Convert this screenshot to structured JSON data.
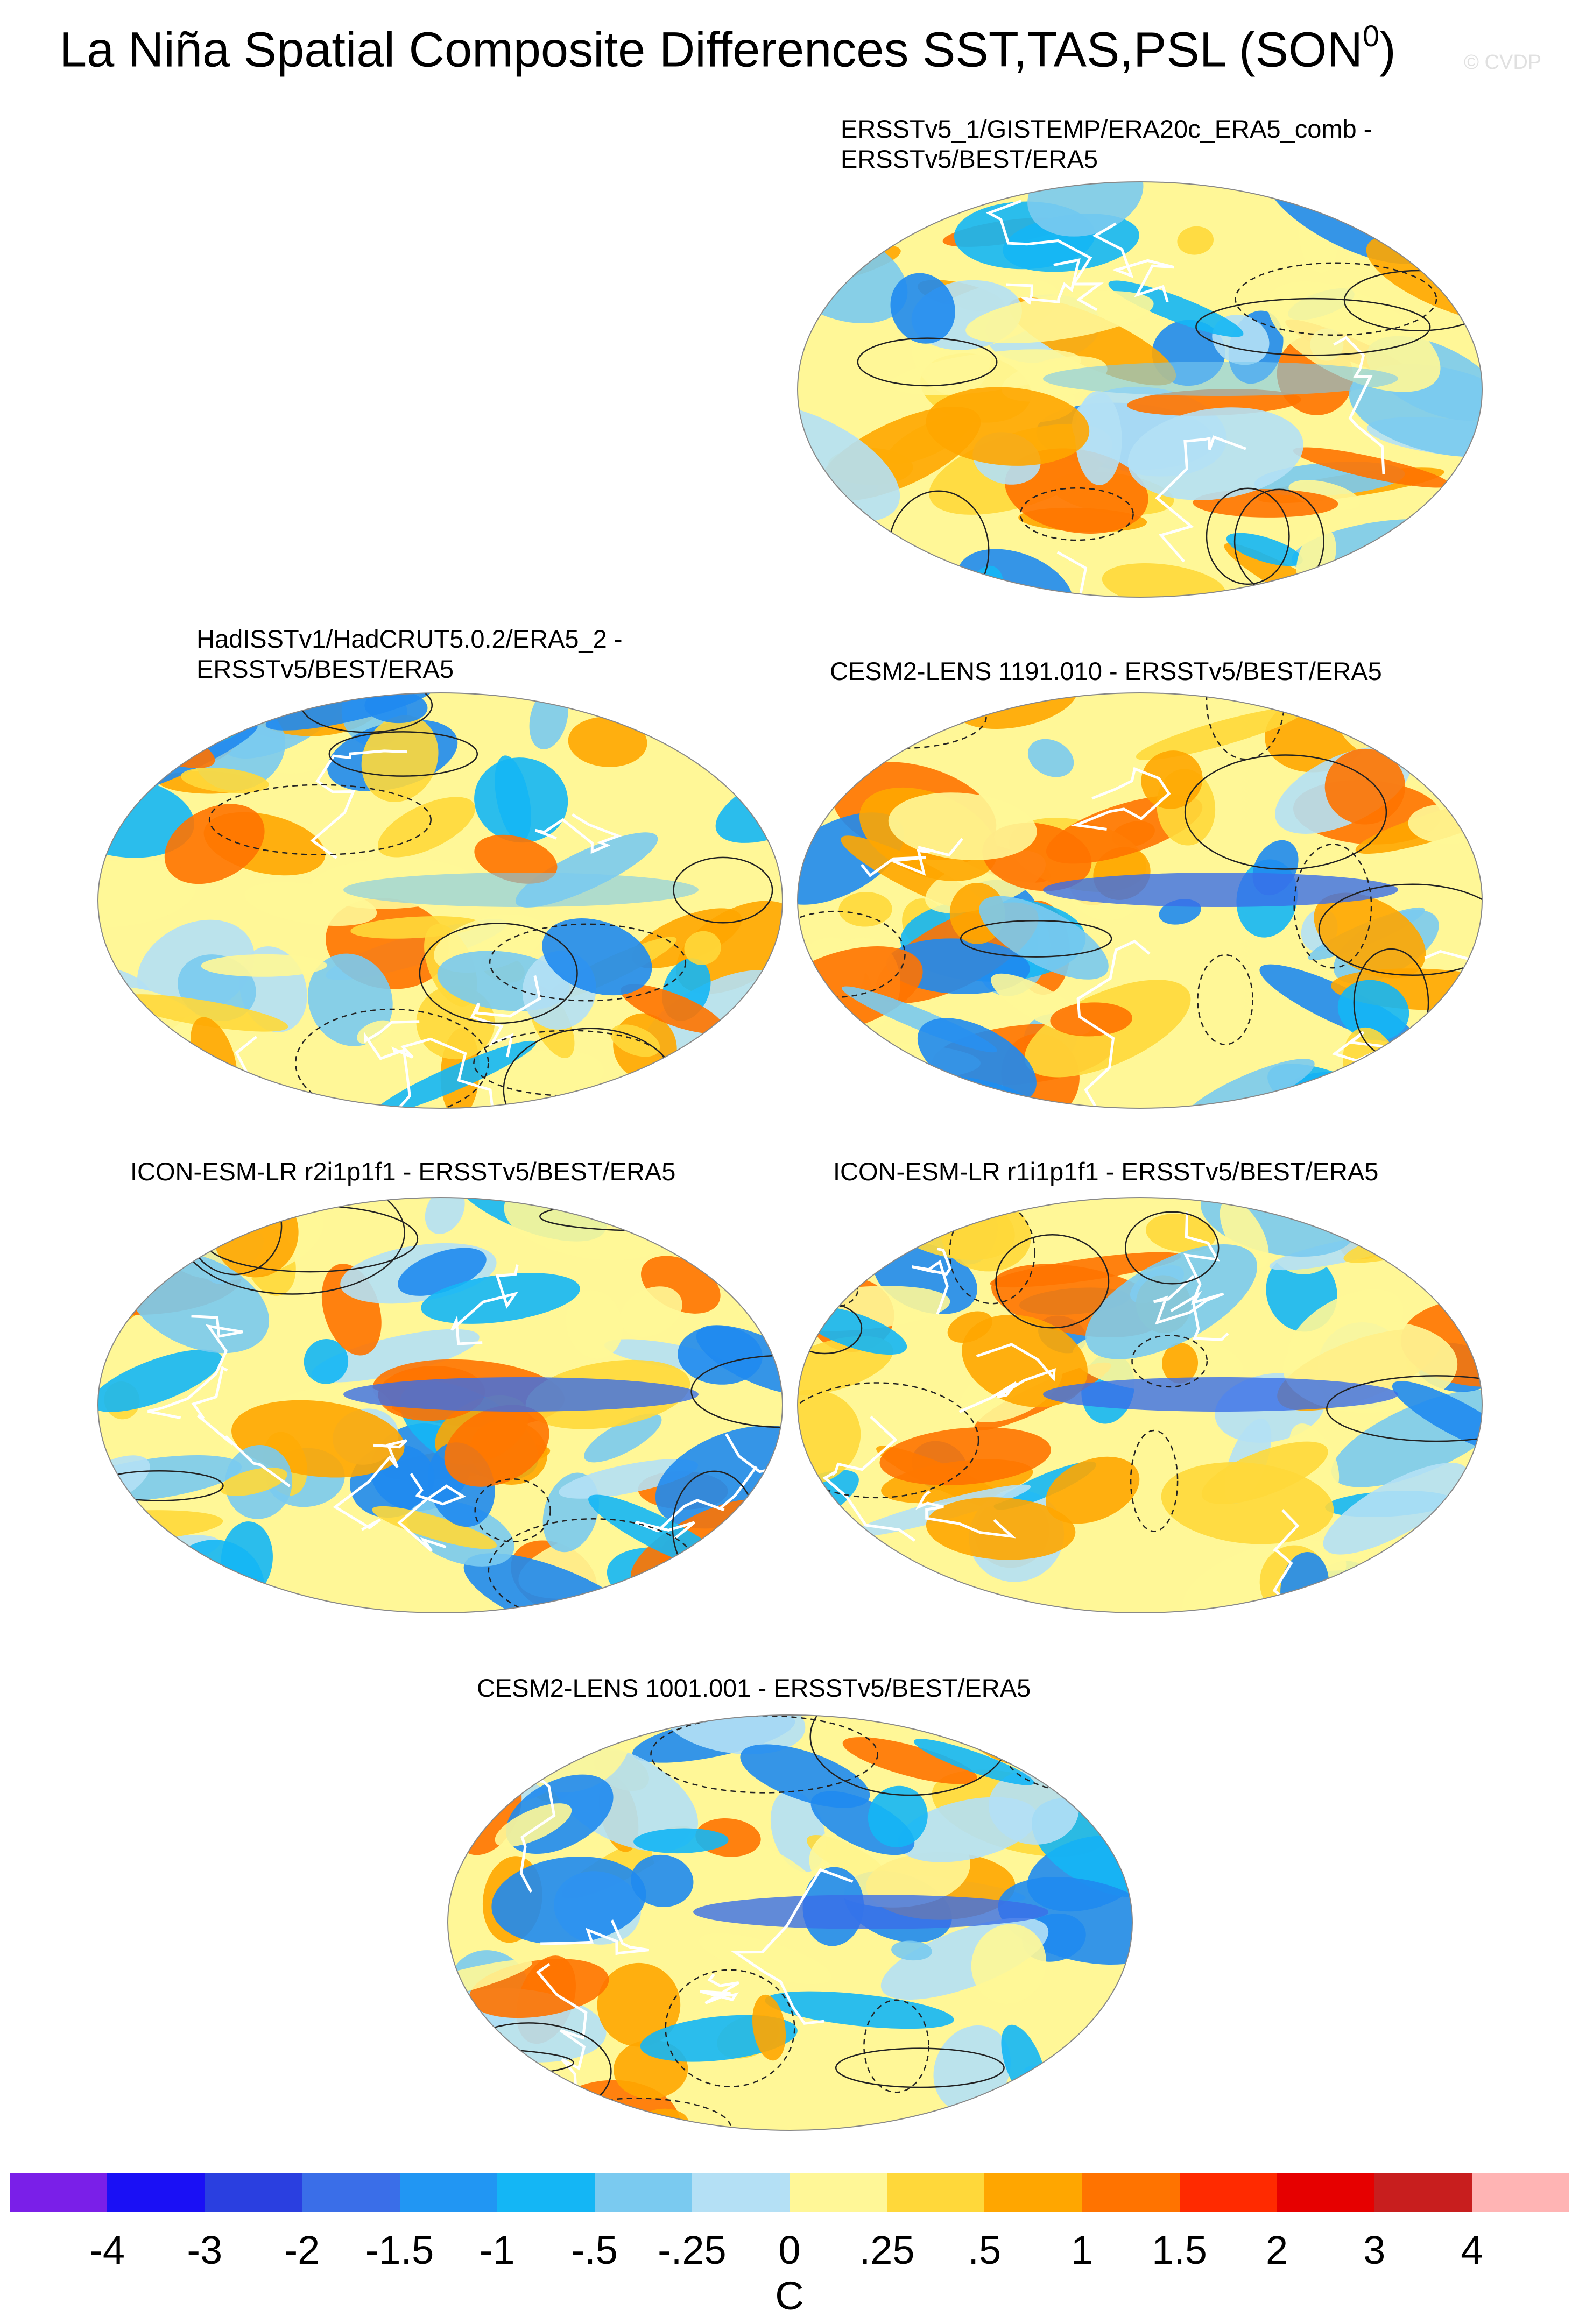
{
  "title": "La Niña Spatial Composite Differences SST,TAS,PSL (SON",
  "title_sup": "0",
  "title_close": ")",
  "watermark": "© CVDP",
  "panels": [
    {
      "label": "ERSSTv5_1/GISTEMP/ERA20c_ERA5_comb -\nERSSTv5/BEST/ERA5",
      "seed": 11
    },
    {
      "label": "HadISSTv1/HadCRUT5.0.2/ERA5_2 -\nERSSTv5/BEST/ERA5",
      "seed": 23
    },
    {
      "label": "CESM2-LENS 1191.010 - ERSSTv5/BEST/ERA5",
      "seed": 37
    },
    {
      "label": "ICON-ESM-LR r2i1p1f1 - ERSSTv5/BEST/ERA5",
      "seed": 41
    },
    {
      "label": "ICON-ESM-LR r1i1p1f1 - ERSSTv5/BEST/ERA5",
      "seed": 53
    },
    {
      "label": "CESM2-LENS 1001.001 - ERSSTv5/BEST/ERA5",
      "seed": 67
    }
  ],
  "colorbar": {
    "colors": [
      "#7a1fe8",
      "#1a10f5",
      "#2a3fe0",
      "#3a6ee8",
      "#2196f3",
      "#14b6f5",
      "#7acaf0",
      "#b4e0f5",
      "#fff797",
      "#ffd83a",
      "#ffa600",
      "#ff7300",
      "#ff2a00",
      "#e60000",
      "#c81e1e",
      "#ffb4b4"
    ],
    "ticks": [
      "-4",
      "-3",
      "-2",
      "-1.5",
      "-1",
      "-.5",
      "-.25",
      "0",
      ".25",
      ".5",
      "1",
      "1.5",
      "2",
      "3",
      "4"
    ],
    "units": "C"
  }
}
